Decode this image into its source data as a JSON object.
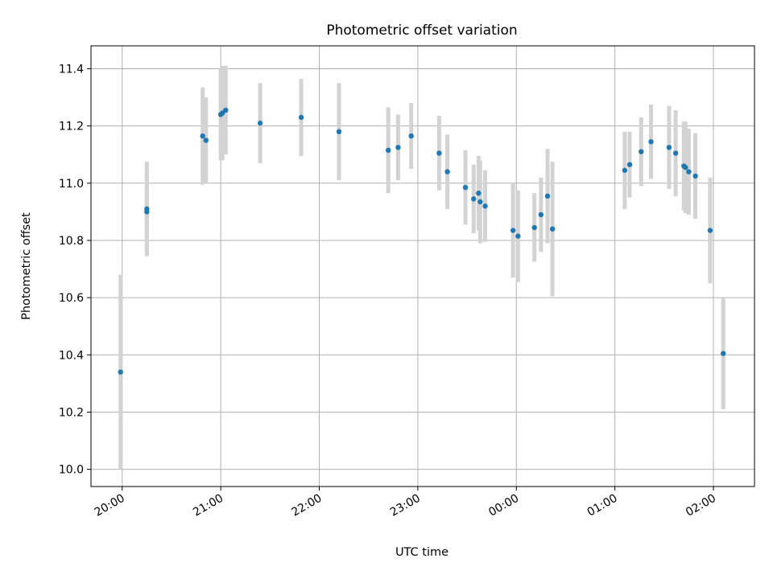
{
  "chart_data": {
    "type": "scatter",
    "title": "Photometric offset variation",
    "xlabel": "UTC time",
    "ylabel": "Photometric offset",
    "x_ticks": [
      "20:00",
      "21:00",
      "22:00",
      "23:00",
      "00:00",
      "01:00",
      "02:00"
    ],
    "y_ticks": [
      "10.0",
      "10.2",
      "10.4",
      "10.6",
      "10.8",
      "11.0",
      "11.2",
      "11.4"
    ],
    "xlim": [
      "19:41",
      "02:25"
    ],
    "ylim": [
      9.94,
      11.48
    ],
    "grid": true,
    "colors": {
      "point": "#1f77b4",
      "errorbar": "#d3d3d3",
      "grid": "#b0b0b0"
    },
    "points": [
      {
        "time": "19:59",
        "y": 10.34,
        "err": 0.34
      },
      {
        "time": "20:15",
        "y": 10.9,
        "err": 0.15
      },
      {
        "time": "20:15",
        "y": 10.91,
        "err": 0.165
      },
      {
        "time": "20:49",
        "y": 11.165,
        "err": 0.17
      },
      {
        "time": "20:51",
        "y": 11.15,
        "err": 0.15
      },
      {
        "time": "21:00",
        "y": 11.24,
        "err": 0.16
      },
      {
        "time": "21:01",
        "y": 11.245,
        "err": 0.165
      },
      {
        "time": "21:03",
        "y": 11.255,
        "err": 0.155
      },
      {
        "time": "21:24",
        "y": 11.21,
        "err": 0.14
      },
      {
        "time": "21:49",
        "y": 11.23,
        "err": 0.135
      },
      {
        "time": "22:12",
        "y": 11.18,
        "err": 0.17
      },
      {
        "time": "22:42",
        "y": 11.115,
        "err": 0.15
      },
      {
        "time": "22:48",
        "y": 11.125,
        "err": 0.115
      },
      {
        "time": "22:56",
        "y": 11.165,
        "err": 0.115
      },
      {
        "time": "23:13",
        "y": 11.105,
        "err": 0.13
      },
      {
        "time": "23:18",
        "y": 11.04,
        "err": 0.13
      },
      {
        "time": "23:29",
        "y": 10.985,
        "err": 0.13
      },
      {
        "time": "23:34",
        "y": 10.945,
        "err": 0.12
      },
      {
        "time": "23:37",
        "y": 10.965,
        "err": 0.13
      },
      {
        "time": "23:38",
        "y": 10.935,
        "err": 0.145
      },
      {
        "time": "23:41",
        "y": 10.92,
        "err": 0.125
      },
      {
        "time": "23:58",
        "y": 10.835,
        "err": 0.165
      },
      {
        "time": "00:01",
        "y": 10.815,
        "err": 0.16
      },
      {
        "time": "00:11",
        "y": 10.845,
        "err": 0.12
      },
      {
        "time": "00:15",
        "y": 10.89,
        "err": 0.13
      },
      {
        "time": "00:19",
        "y": 10.955,
        "err": 0.165
      },
      {
        "time": "00:22",
        "y": 10.84,
        "err": 0.235
      },
      {
        "time": "01:06",
        "y": 11.045,
        "err": 0.135
      },
      {
        "time": "01:09",
        "y": 11.065,
        "err": 0.115
      },
      {
        "time": "01:16",
        "y": 11.11,
        "err": 0.12
      },
      {
        "time": "01:22",
        "y": 11.145,
        "err": 0.13
      },
      {
        "time": "01:33",
        "y": 11.125,
        "err": 0.145
      },
      {
        "time": "01:37",
        "y": 11.105,
        "err": 0.15
      },
      {
        "time": "01:42",
        "y": 11.06,
        "err": 0.155
      },
      {
        "time": "01:43",
        "y": 11.055,
        "err": 0.16
      },
      {
        "time": "01:45",
        "y": 11.04,
        "err": 0.15
      },
      {
        "time": "01:49",
        "y": 11.025,
        "err": 0.15
      },
      {
        "time": "01:58",
        "y": 10.835,
        "err": 0.185
      },
      {
        "time": "02:06",
        "y": 10.405,
        "err": 0.195
      }
    ]
  }
}
